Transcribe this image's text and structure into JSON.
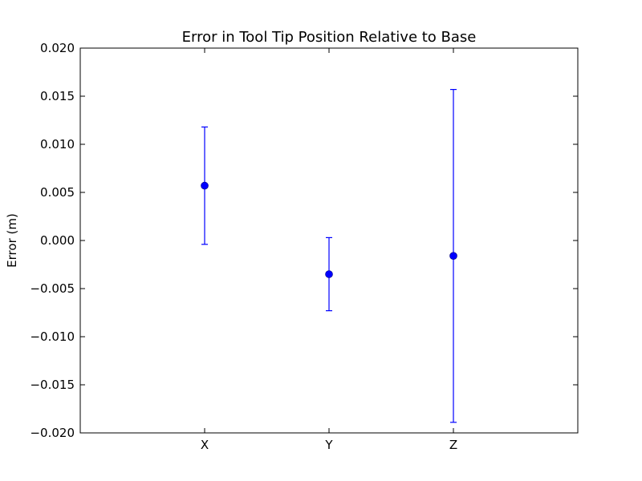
{
  "chart_data": {
    "type": "scatter",
    "title": "Error in Tool Tip Position Relative to Base",
    "xlabel": "",
    "ylabel": "Error (m)",
    "ylim": [
      -0.02,
      0.02
    ],
    "y_ticks": [
      {
        "value": 0.02,
        "label": "0.020"
      },
      {
        "value": 0.015,
        "label": "0.015"
      },
      {
        "value": 0.01,
        "label": "0.010"
      },
      {
        "value": 0.005,
        "label": "0.005"
      },
      {
        "value": 0.0,
        "label": "0.000"
      },
      {
        "value": -0.005,
        "label": "−0.005"
      },
      {
        "value": -0.01,
        "label": "−0.010"
      },
      {
        "value": -0.015,
        "label": "−0.015"
      },
      {
        "value": -0.02,
        "label": "−0.020"
      }
    ],
    "categories": [
      "X",
      "Y",
      "Z"
    ],
    "x_range": [
      0,
      4
    ],
    "x": [
      1,
      2,
      3
    ],
    "grid": false,
    "color": "#0000ff",
    "series": [
      {
        "values": [
          0.0057,
          -0.0035,
          -0.0016
        ],
        "errors": [
          0.0061,
          0.0038,
          0.0173
        ]
      }
    ]
  }
}
